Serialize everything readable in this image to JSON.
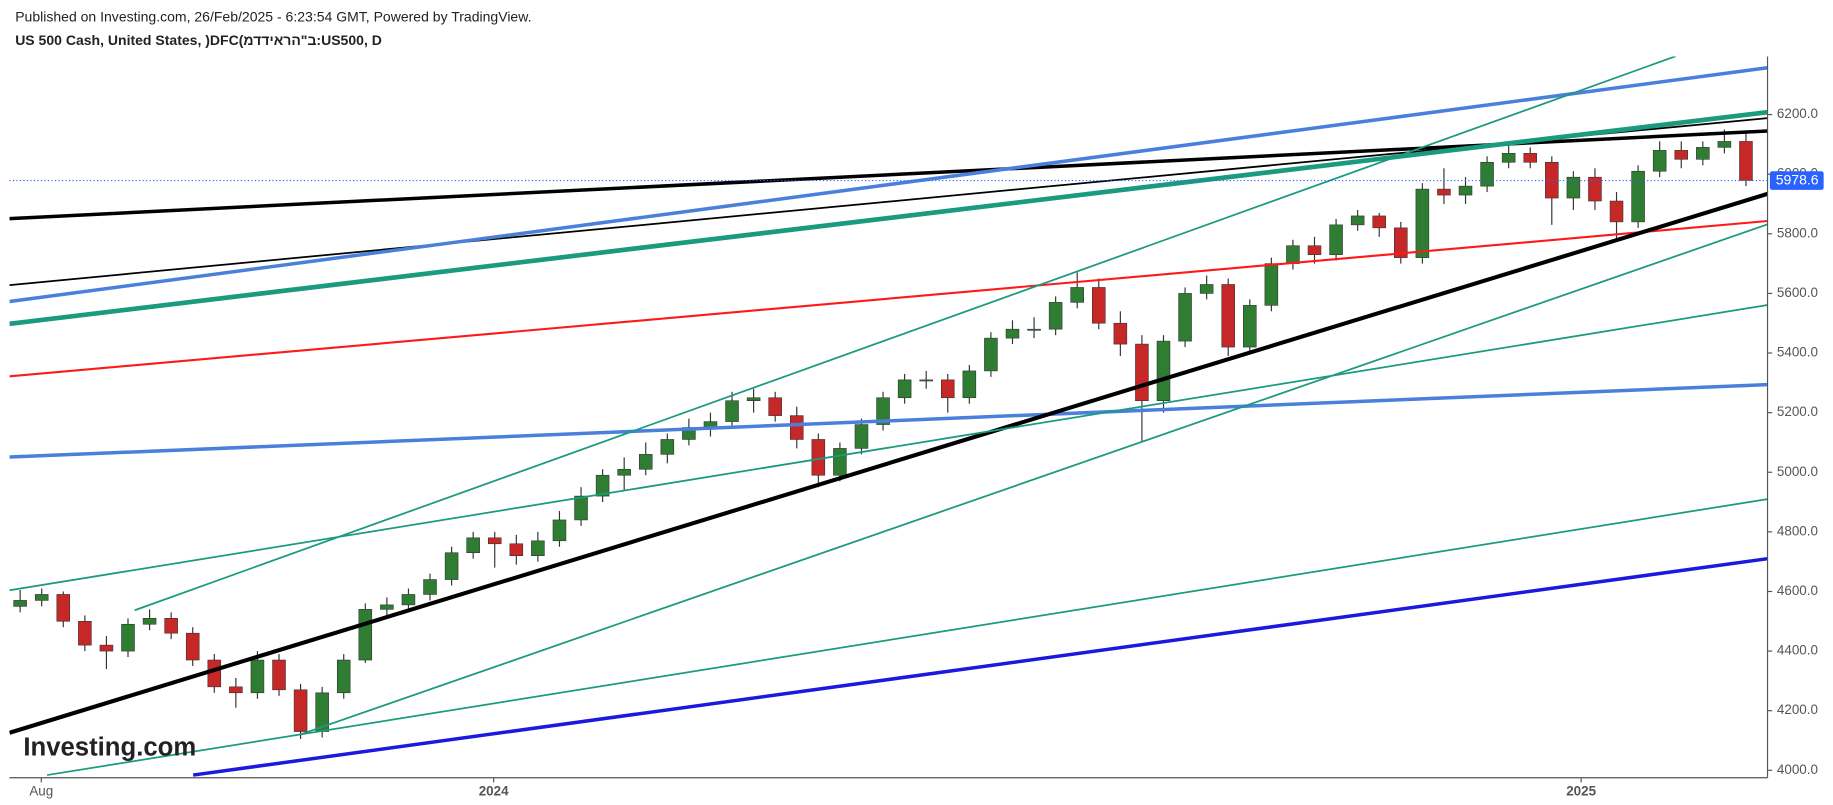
{
  "header": {
    "published": "Published on Investing.com, 26/Feb/2025 - 6:23:54 GMT, Powered by TradingView.",
    "symbol": "US 500 Cash, United States, )DFC(ב\"הראידדמ:US500, D",
    "logo": "Investing.com"
  },
  "chart_data": {
    "type": "candlestick",
    "up_color": "#2e7d32",
    "down_color": "#c62828",
    "xlim": [
      -0.5,
      81.0
    ],
    "ylim": [
      3975,
      6395
    ],
    "xticks": [
      {
        "value": 0.98,
        "label": "Aug"
      },
      {
        "value": 21.95,
        "label": "2024"
      },
      {
        "value": 72.36,
        "label": "2025"
      }
    ],
    "yticks": [
      {
        "value": 4000,
        "label": "4000.0"
      },
      {
        "value": 4200,
        "label": "4200.0"
      },
      {
        "value": 4400,
        "label": "4400.0"
      },
      {
        "value": 4600,
        "label": "4600.0"
      },
      {
        "value": 4800,
        "label": "4800.0"
      },
      {
        "value": 5000,
        "label": "5000.0"
      },
      {
        "value": 5200,
        "label": "5200.0"
      },
      {
        "value": 5400,
        "label": "5400.0"
      },
      {
        "value": 5600,
        "label": "5600.0"
      },
      {
        "value": 5800,
        "label": "5800.0"
      },
      {
        "value": 6000,
        "label": "6000.0"
      },
      {
        "value": 6200,
        "label": "6200.0"
      }
    ],
    "last_price": 5978.6,
    "last_price_color": "#2962ff",
    "ohlc": [
      [
        4550,
        4605,
        4530,
        4570
      ],
      [
        4570,
        4610,
        4550,
        4590
      ],
      [
        4590,
        4600,
        4480,
        4500
      ],
      [
        4500,
        4520,
        4400,
        4420
      ],
      [
        4420,
        4450,
        4340,
        4400
      ],
      [
        4400,
        4510,
        4380,
        4490
      ],
      [
        4490,
        4540,
        4470,
        4510
      ],
      [
        4510,
        4530,
        4440,
        4460
      ],
      [
        4460,
        4480,
        4350,
        4370
      ],
      [
        4370,
        4390,
        4260,
        4280
      ],
      [
        4280,
        4310,
        4210,
        4260
      ],
      [
        4260,
        4400,
        4240,
        4370
      ],
      [
        4370,
        4390,
        4250,
        4270
      ],
      [
        4270,
        4290,
        4105,
        4130
      ],
      [
        4130,
        4280,
        4110,
        4260
      ],
      [
        4260,
        4390,
        4240,
        4370
      ],
      [
        4370,
        4560,
        4360,
        4540
      ],
      [
        4540,
        4580,
        4520,
        4555
      ],
      [
        4555,
        4610,
        4540,
        4590
      ],
      [
        4590,
        4660,
        4570,
        4640
      ],
      [
        4640,
        4750,
        4620,
        4730
      ],
      [
        4730,
        4800,
        4710,
        4780
      ],
      [
        4780,
        4800,
        4680,
        4760
      ],
      [
        4760,
        4790,
        4690,
        4720
      ],
      [
        4720,
        4800,
        4700,
        4770
      ],
      [
        4770,
        4870,
        4750,
        4840
      ],
      [
        4840,
        4950,
        4820,
        4920
      ],
      [
        4920,
        5010,
        4900,
        4990
      ],
      [
        4990,
        5050,
        4940,
        5010
      ],
      [
        5010,
        5100,
        4990,
        5060
      ],
      [
        5060,
        5130,
        5030,
        5110
      ],
      [
        5110,
        5180,
        5090,
        5150
      ],
      [
        5150,
        5200,
        5120,
        5170
      ],
      [
        5170,
        5270,
        5150,
        5240
      ],
      [
        5240,
        5280,
        5200,
        5250
      ],
      [
        5250,
        5270,
        5170,
        5190
      ],
      [
        5190,
        5220,
        5080,
        5110
      ],
      [
        5110,
        5130,
        4950,
        4990
      ],
      [
        4990,
        5100,
        4970,
        5080
      ],
      [
        5080,
        5180,
        5060,
        5160
      ],
      [
        5160,
        5270,
        5140,
        5250
      ],
      [
        5250,
        5330,
        5230,
        5310
      ],
      [
        5310,
        5340,
        5280,
        5310
      ],
      [
        5310,
        5330,
        5200,
        5250
      ],
      [
        5250,
        5360,
        5230,
        5340
      ],
      [
        5340,
        5470,
        5320,
        5450
      ],
      [
        5450,
        5510,
        5430,
        5480
      ],
      [
        5480,
        5520,
        5450,
        5480
      ],
      [
        5480,
        5590,
        5460,
        5570
      ],
      [
        5570,
        5670,
        5550,
        5620
      ],
      [
        5620,
        5650,
        5480,
        5500
      ],
      [
        5500,
        5540,
        5390,
        5430
      ],
      [
        5430,
        5460,
        5100,
        5240
      ],
      [
        5240,
        5460,
        5200,
        5440
      ],
      [
        5440,
        5620,
        5420,
        5600
      ],
      [
        5600,
        5660,
        5580,
        5630
      ],
      [
        5630,
        5650,
        5390,
        5420
      ],
      [
        5420,
        5580,
        5400,
        5560
      ],
      [
        5560,
        5720,
        5540,
        5700
      ],
      [
        5700,
        5780,
        5680,
        5760
      ],
      [
        5760,
        5790,
        5700,
        5730
      ],
      [
        5730,
        5850,
        5710,
        5830
      ],
      [
        5830,
        5880,
        5810,
        5860
      ],
      [
        5860,
        5870,
        5790,
        5820
      ],
      [
        5820,
        5840,
        5700,
        5720
      ],
      [
        5720,
        5970,
        5700,
        5950
      ],
      [
        5950,
        6020,
        5900,
        5930
      ],
      [
        5930,
        5990,
        5900,
        5960
      ],
      [
        5960,
        6060,
        5940,
        6040
      ],
      [
        6040,
        6100,
        6020,
        6070
      ],
      [
        6070,
        6090,
        6020,
        6040
      ],
      [
        6040,
        6060,
        5830,
        5920
      ],
      [
        5920,
        6010,
        5880,
        5990
      ],
      [
        5990,
        6020,
        5880,
        5910
      ],
      [
        5910,
        5940,
        5780,
        5840
      ],
      [
        5840,
        6030,
        5820,
        6010
      ],
      [
        6010,
        6110,
        5990,
        6080
      ],
      [
        6080,
        6110,
        6020,
        6050
      ],
      [
        6050,
        6110,
        6030,
        6090
      ],
      [
        6090,
        6150,
        6070,
        6110
      ],
      [
        6110,
        6140,
        5960,
        5979
      ]
    ],
    "lines": [
      {
        "color": "#000000",
        "width": 3,
        "points": [
          [
            -0.49,
            5851
          ],
          [
            81.0,
            6145
          ]
        ]
      },
      {
        "color": "#000000",
        "width": 1.5,
        "points": [
          [
            -0.49,
            5628
          ],
          [
            81.0,
            6188
          ]
        ]
      },
      {
        "color": "#4a7fdc",
        "width": 3,
        "points": [
          [
            -0.49,
            5573
          ],
          [
            81.0,
            6357
          ]
        ]
      },
      {
        "color": "#1a9a7e",
        "width": 4,
        "points": [
          [
            -0.49,
            5498
          ],
          [
            81.0,
            6208
          ]
        ]
      },
      {
        "color": "#ff1a1a",
        "width": 1.8,
        "points": [
          [
            -0.49,
            5322
          ],
          [
            81.0,
            5843
          ]
        ]
      },
      {
        "color": "#4a7fdc",
        "width": 3,
        "points": [
          [
            -0.49,
            5051
          ],
          [
            81.0,
            5294
          ]
        ]
      },
      {
        "color": "#1a1adf",
        "width": 3,
        "points": [
          [
            8.02,
            3984
          ],
          [
            81.0,
            4710
          ]
        ]
      },
      {
        "color": "#000000",
        "width": 3.5,
        "points": [
          [
            -0.49,
            4126
          ],
          [
            81.0,
            5934
          ]
        ]
      },
      {
        "color": "#1a9a7e",
        "width": 1.5,
        "points": [
          [
            5.31,
            4537
          ],
          [
            76.75,
            6396
          ]
        ]
      },
      {
        "color": "#1a9a7e",
        "width": 1.5,
        "points": [
          [
            13.06,
            4122
          ],
          [
            81.0,
            5832
          ]
        ]
      },
      {
        "color": "#1a9a7e",
        "width": 1.5,
        "points": [
          [
            -0.49,
            4604
          ],
          [
            81.0,
            5561
          ]
        ]
      },
      {
        "color": "#1a9a7e",
        "width": 1.5,
        "points": [
          [
            1.25,
            3984
          ],
          [
            81.0,
            4910
          ]
        ]
      }
    ]
  }
}
